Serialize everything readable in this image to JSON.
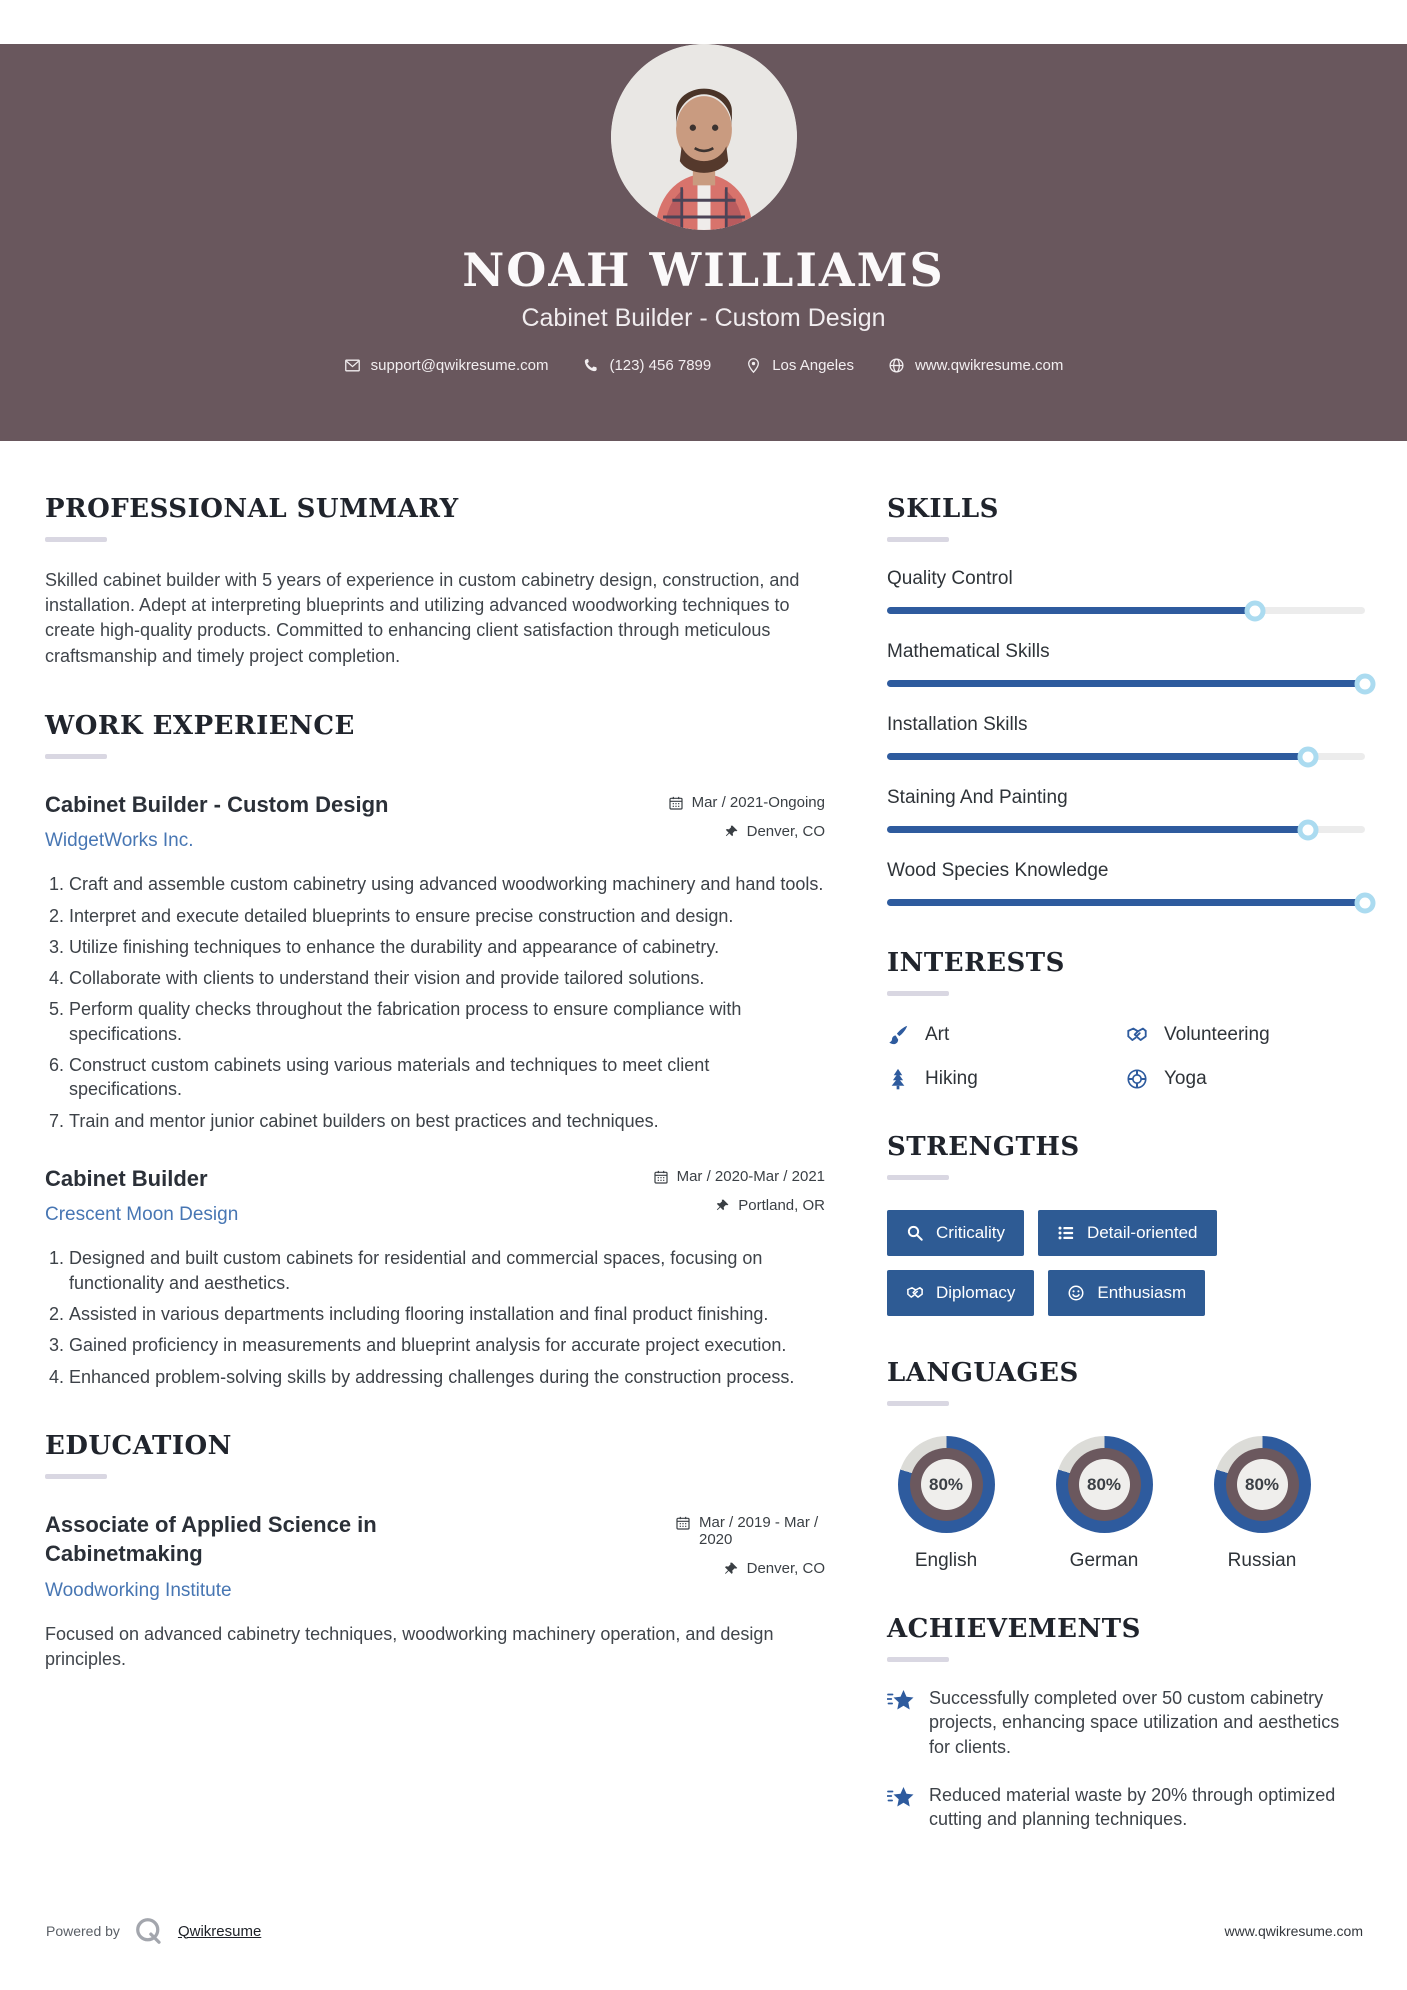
{
  "header": {
    "name": "NOAH WILLIAMS",
    "title": "Cabinet Builder - Custom Design",
    "contact": {
      "email": "support@qwikresume.com",
      "phone": "(123) 456 7899",
      "location": "Los Angeles",
      "website": "www.qwikresume.com"
    }
  },
  "sections": {
    "summary": {
      "heading": "PROFESSIONAL SUMMARY",
      "text": "Skilled cabinet builder with 5 years of experience in custom cabinetry design, construction, and installation. Adept at interpreting blueprints and utilizing advanced woodworking techniques to create high-quality products. Committed to enhancing client satisfaction through meticulous craftsmanship and timely project completion."
    },
    "experience": {
      "heading": "WORK EXPERIENCE",
      "jobs": [
        {
          "title": "Cabinet Builder - Custom Design",
          "company": "WidgetWorks Inc.",
          "date": "Mar / 2021-Ongoing",
          "location": "Denver, CO",
          "bullets": [
            "Craft and assemble custom cabinetry using advanced woodworking machinery and hand tools.",
            "Interpret and execute detailed blueprints to ensure precise construction and design.",
            "Utilize finishing techniques to enhance the durability and appearance of cabinetry.",
            "Collaborate with clients to understand their vision and provide tailored solutions.",
            "Perform quality checks throughout the fabrication process to ensure compliance with specifications.",
            "Construct custom cabinets using various materials and techniques to meet client specifications.",
            "Train and mentor junior cabinet builders on best practices and techniques."
          ]
        },
        {
          "title": "Cabinet Builder",
          "company": "Crescent Moon Design",
          "date": "Mar / 2020-Mar / 2021",
          "location": "Portland, OR",
          "bullets": [
            "Designed and built custom cabinets for residential and commercial spaces, focusing on functionality and aesthetics.",
            "Assisted in various departments including flooring installation and final product finishing.",
            "Gained proficiency in measurements and blueprint analysis for accurate project execution.",
            "Enhanced problem-solving skills by addressing challenges during the construction process."
          ]
        }
      ]
    },
    "education": {
      "heading": "EDUCATION",
      "degree": "Associate of Applied Science in Cabinetmaking",
      "school": "Woodworking Institute",
      "date": "Mar / 2019 - Mar / 2020",
      "location": "Denver, CO",
      "description": "Focused on advanced cabinetry techniques, woodworking machinery operation, and design principles."
    },
    "skills": {
      "heading": "SKILLS",
      "items": [
        {
          "name": "Quality Control",
          "level": 77
        },
        {
          "name": "Mathematical Skills",
          "level": 100
        },
        {
          "name": "Installation Skills",
          "level": 88
        },
        {
          "name": "Staining And Painting",
          "level": 88
        },
        {
          "name": "Wood Species Knowledge",
          "level": 100
        }
      ]
    },
    "interests": {
      "heading": "INTERESTS",
      "items": [
        {
          "label": "Art",
          "icon": "paintbrush-icon"
        },
        {
          "label": "Volunteering",
          "icon": "handshake-icon"
        },
        {
          "label": "Hiking",
          "icon": "tree-icon"
        },
        {
          "label": "Yoga",
          "icon": "lifering-icon"
        }
      ]
    },
    "strengths": {
      "heading": "STRENGTHS",
      "items": [
        {
          "label": "Criticality",
          "icon": "search-icon"
        },
        {
          "label": "Detail-oriented",
          "icon": "list-icon"
        },
        {
          "label": "Diplomacy",
          "icon": "handshake-icon"
        },
        {
          "label": "Enthusiasm",
          "icon": "smiley-icon"
        }
      ]
    },
    "languages": {
      "heading": "LANGUAGES",
      "items": [
        {
          "name": "English",
          "percent": 80,
          "percent_label": "80%"
        },
        {
          "name": "German",
          "percent": 80,
          "percent_label": "80%"
        },
        {
          "name": "Russian",
          "percent": 80,
          "percent_label": "80%"
        }
      ]
    },
    "achievements": {
      "heading": "ACHIEVEMENTS",
      "items": [
        "Successfully completed over 50 custom cabinetry projects, enhancing space utilization and aesthetics for clients.",
        "Reduced material waste by 20% through optimized cutting and planning techniques."
      ]
    }
  },
  "footer": {
    "powered_by": "Powered by",
    "brand": "Qwikresume",
    "website": "www.qwikresume.com"
  },
  "colors": {
    "header_bg": "#69575d",
    "accent_blue": "#2e5b9e",
    "button_blue": "#2e5b94",
    "link_blue": "#4776b3",
    "bar_track": "#ececec",
    "knob_ring": "#abdbf0",
    "donut_gap": "#dcdcd8",
    "donut_ring": "#6b585e",
    "heading_rule": "#d9d7e2"
  }
}
